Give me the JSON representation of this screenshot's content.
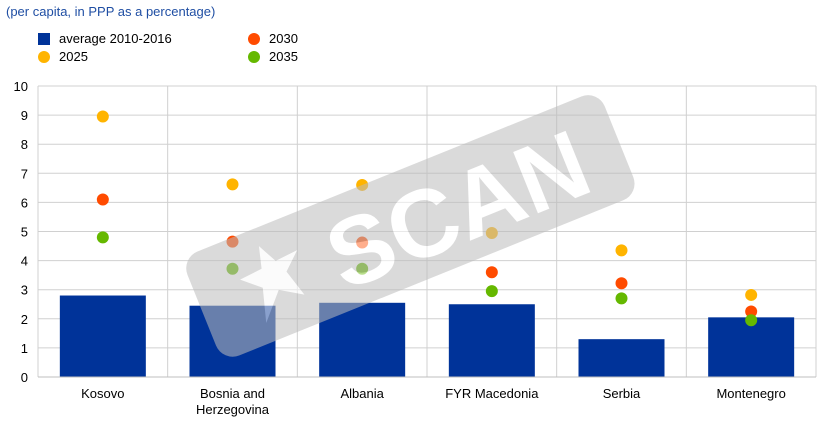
{
  "subtitle": "(per capita, in PPP as a percentage)",
  "legend": [
    {
      "label": "average 2010-2016",
      "kind": "bar",
      "color": "#003399"
    },
    {
      "label": "2025",
      "kind": "dot",
      "color": "#ffb400"
    },
    {
      "label": "2030",
      "kind": "dot",
      "color": "#ff4b00"
    },
    {
      "label": "2035",
      "kind": "dot",
      "color": "#65b800"
    }
  ],
  "watermark": {
    "text": "SCAN"
  },
  "chart_data": {
    "type": "bar",
    "categories": [
      [
        "Kosovo"
      ],
      [
        "Bosnia and",
        "Herzegovina"
      ],
      [
        "Albania"
      ],
      [
        "FYR Macedonia"
      ],
      [
        "Serbia"
      ],
      [
        "Montenegro"
      ]
    ],
    "ylim": [
      0,
      10
    ],
    "yticks": [
      "0",
      "1",
      "2",
      "3",
      "4",
      "5",
      "6",
      "7",
      "8",
      "9",
      "10"
    ],
    "grid": true,
    "legend_position": "top-left",
    "bar_series": {
      "name": "average 2010-2016",
      "color": "#003399",
      "values": [
        2.8,
        2.45,
        2.55,
        2.5,
        1.3,
        2.05
      ]
    },
    "point_series": [
      {
        "name": "2025",
        "color": "#ffb400",
        "values": [
          8.95,
          6.62,
          6.6,
          4.95,
          4.35,
          2.82
        ]
      },
      {
        "name": "2030",
        "color": "#ff4b00",
        "values": [
          6.1,
          4.65,
          4.62,
          3.6,
          3.22,
          2.25
        ]
      },
      {
        "name": "2035",
        "color": "#65b800",
        "values": [
          4.8,
          3.72,
          3.72,
          2.95,
          2.7,
          1.95
        ]
      }
    ]
  }
}
